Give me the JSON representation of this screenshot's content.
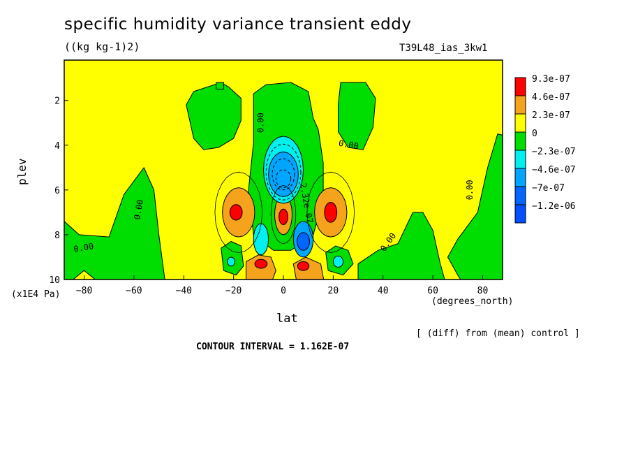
{
  "chart_data": {
    "type": "heatmap",
    "title": "specific humidity variance transient eddy",
    "units": "((kg kg-1)2)",
    "run_label": "T39L48_ias_3kw1",
    "xlabel": "lat",
    "x_units": "(degrees_north)",
    "ylabel": "plev",
    "y_units": "(x1E4 Pa)",
    "xlim": [
      -88,
      88
    ],
    "ylim": [
      10,
      0.2
    ],
    "x_ticks": [
      -80,
      -60,
      -40,
      -20,
      0,
      20,
      40,
      60,
      80
    ],
    "y_ticks": [
      2,
      4,
      6,
      8,
      10
    ],
    "diff_note": "[ (diff) from (mean) control ]",
    "contour_interval": "CONTOUR INTERVAL = 1.162E-07",
    "legend": [
      {
        "label": "9.3e-07",
        "color": "#ff0000"
      },
      {
        "label": "4.6e-07",
        "color": "#f5a31c"
      },
      {
        "label": "2.3e-07",
        "color": "#ffff00"
      },
      {
        "label": "0",
        "color": "#00dd00"
      },
      {
        "label": "−2.3e-07",
        "color": "#00f0f0"
      },
      {
        "label": "−4.6e-07",
        "color": "#00a5ff"
      },
      {
        "label": "−7e-07",
        "color": "#0066ff"
      },
      {
        "label": "−1.2e-06",
        "color": "#0050ff"
      }
    ],
    "contour_labels": [
      {
        "text": "0.00",
        "lat": -8,
        "plev": 3.0,
        "rot": -90
      },
      {
        "text": "0.00",
        "lat": 26,
        "plev": 4.1,
        "rot": 10
      },
      {
        "text": "0.00",
        "lat": -57,
        "plev": 6.9,
        "rot": -80
      },
      {
        "text": "0.00",
        "lat": -80,
        "plev": 8.7,
        "rot": -10
      },
      {
        "text": "0.00",
        "lat": 43,
        "plev": 8.4,
        "rot": -55
      },
      {
        "text": "0.00",
        "lat": 76,
        "plev": 6.0,
        "rot": -90
      },
      {
        "text": "-2.32e-07",
        "lat": 8,
        "plev": 6.5,
        "rot": 80
      }
    ]
  }
}
